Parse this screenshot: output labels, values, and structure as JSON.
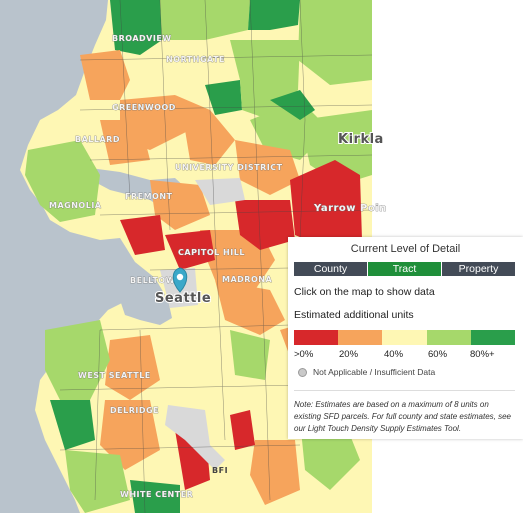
{
  "map": {
    "labels": {
      "broadview": "BROADVIEW",
      "northgate": "NORTHGATE",
      "greenwood": "GREENWOOD",
      "ballard": "BALLARD",
      "kirkland": "Kirkla",
      "fremont": "FREMONT",
      "magnolia": "MAGNOLIA",
      "university_district": "UNIVERSITY DISTRICT",
      "capitol_hill": "CAPITOL HILL",
      "belltown": "BELLTOWN",
      "madrona": "MADRONA",
      "seattle": "Seattle",
      "yarrow_point": "Yarrow Poin",
      "west_seattle": "WEST SEATTLE",
      "delridge": "DELRIDGE",
      "white_center": "WHITE CENTER",
      "bfi": "BFI"
    },
    "colors": {
      "water": "#b9c3cc",
      "land": "#fff3c8",
      "red": "#d7282b",
      "orange": "#f6a45c",
      "yellow": "#fef7b4",
      "lightgreen": "#a6d86b",
      "green": "#2a9e4b",
      "gray": "#d9d9d9",
      "marker": "#3aa8c9"
    }
  },
  "panel": {
    "title": "Current Level of Detail",
    "levels": [
      "County",
      "Tract",
      "Property"
    ],
    "active_level": "Tract",
    "click_hint": "Click on the map to show data",
    "legend_title": "Estimated additional units",
    "legend_colors": [
      "#d7282b",
      "#f6a45c",
      "#fef7b4",
      "#a6d86b",
      "#2a9e4b"
    ],
    "legend_labels": [
      ">0%",
      "20%",
      "40%",
      "60%",
      "80%+"
    ],
    "na_label": "Not Applicable / Insufficient Data",
    "note": "Note: Estimates are based on a maximum of 8 units on existing SFD parcels. For full county and state estimates, see our Light Touch Density Supply Estimates Tool."
  }
}
